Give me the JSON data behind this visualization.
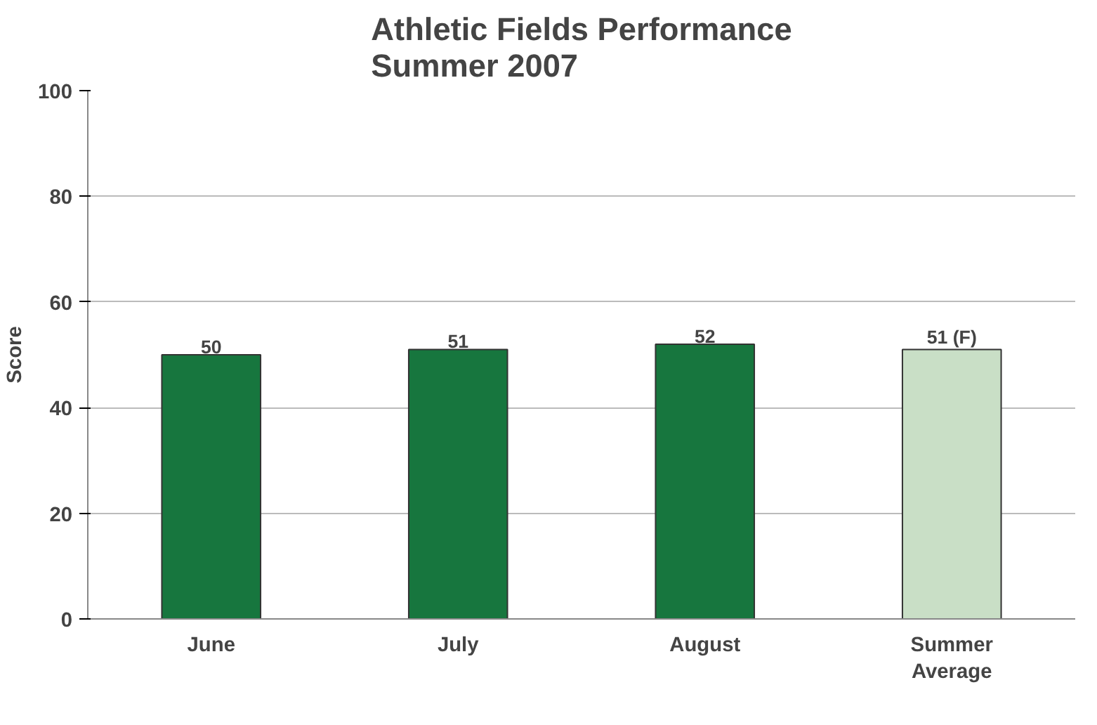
{
  "chart_data": {
    "type": "bar",
    "title": "Athletic Fields Performance\nSummer 2007",
    "ylabel": "Score",
    "categories": [
      "June",
      "July",
      "August",
      "Summer\nAverage"
    ],
    "values": [
      50,
      51,
      52,
      51
    ],
    "colors": [
      "#17763e",
      "#17763e",
      "#17763e",
      "#c9dfc6"
    ],
    "value_labels": [
      "50",
      "51",
      "52",
      "51 (F)"
    ],
    "ylim": [
      0,
      100
    ],
    "yticks": [
      0,
      20,
      40,
      60,
      80,
      100
    ],
    "grid": "y"
  }
}
